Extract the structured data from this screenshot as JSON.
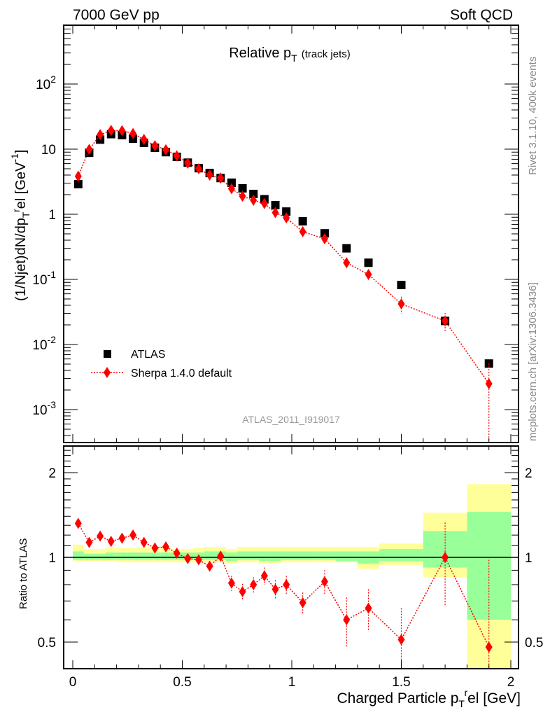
{
  "header": {
    "left": "7000 GeV pp",
    "right": "Soft QCD"
  },
  "side_labels": {
    "rivet": "Rivet 3.1.10,  400k events",
    "mcplots": "mcplots.cern.ch [arXiv:1306.3436]"
  },
  "watermark": "ATLAS_2011_I919017",
  "chart_data": [
    {
      "type": "scatter",
      "title": "Relative p",
      "title_sub": "T",
      "title_suffix": "(track jets)",
      "ylabel": "(1/Njet)dN/dp",
      "ylabel_sub": "T",
      "ylabel_sup": "r",
      "ylabel_tail": "el [GeV",
      "ylabel_tail_sup": "-1",
      "ylabel_close": "]",
      "yscale": "log",
      "xlim": [
        -0.045,
        2.035
      ],
      "ylim": [
        0.00032,
        820
      ],
      "ytick_labels": [
        {
          "v": 0.001,
          "base": "10",
          "exp": "-3"
        },
        {
          "v": 0.01,
          "base": "10",
          "exp": "-2"
        },
        {
          "v": 0.1,
          "base": "10",
          "exp": "-1"
        },
        {
          "v": 1,
          "base": "1",
          "exp": ""
        },
        {
          "v": 10,
          "base": "10",
          "exp": ""
        },
        {
          "v": 100,
          "base": "10",
          "exp": "2"
        }
      ],
      "legend_position": "lower-left",
      "x": [
        0.025,
        0.075,
        0.125,
        0.175,
        0.225,
        0.275,
        0.325,
        0.375,
        0.425,
        0.475,
        0.525,
        0.575,
        0.625,
        0.675,
        0.725,
        0.775,
        0.825,
        0.875,
        0.925,
        0.975,
        1.05,
        1.15,
        1.25,
        1.35,
        1.5,
        1.7,
        1.9
      ],
      "series": [
        {
          "name": "ATLAS",
          "color": "#000000",
          "marker": "square",
          "values": [
            2.9,
            8.8,
            14,
            17,
            16.4,
            14.5,
            12.5,
            10.5,
            9.0,
            7.6,
            6.2,
            5.1,
            4.3,
            3.6,
            3.05,
            2.5,
            2.05,
            1.7,
            1.38,
            1.1,
            0.78,
            0.51,
            0.3,
            0.18,
            0.082,
            0.023,
            0.0051
          ]
        },
        {
          "name": "Sherpa 1.4.0 default",
          "color": "#ff0000",
          "marker": "diamond",
          "line": "dotted",
          "values": [
            3.83,
            9.9,
            16.7,
            19.4,
            19.2,
            17.4,
            14.1,
            11.3,
            9.8,
            7.9,
            6.1,
            5.0,
            4.0,
            3.6,
            2.47,
            1.89,
            1.64,
            1.46,
            1.06,
            0.88,
            0.54,
            0.42,
            0.18,
            0.119,
            0.042,
            0.023,
            0.0025
          ]
        }
      ]
    },
    {
      "type": "scatter",
      "ylabel": "Ratio to ATLAS",
      "xlabel": "Charged Particle p",
      "xlabel_sub": "T",
      "xlabel_sup": "r",
      "xlabel_tail": "el [GeV]",
      "yscale": "log",
      "ylim": [
        0.4,
        2.5
      ],
      "xtick_labels": [
        "0",
        "0.5",
        "1",
        "1.5",
        "2"
      ],
      "ytick_labels": [
        "0.5",
        "1",
        "2"
      ],
      "bin_edges": [
        0,
        0.05,
        0.1,
        0.15,
        0.2,
        0.25,
        0.3,
        0.35,
        0.4,
        0.45,
        0.5,
        0.55,
        0.6,
        0.65,
        0.7,
        0.75,
        0.8,
        0.85,
        0.9,
        0.95,
        1.0,
        1.1,
        1.2,
        1.3,
        1.4,
        1.6,
        1.8,
        2.0
      ],
      "band_colors": {
        "total": "#ffff99",
        "stat": "#99ff99"
      },
      "band_total": [
        [
          0.97,
          1.11
        ],
        [
          0.97,
          1.07
        ],
        [
          0.97,
          1.07
        ],
        [
          0.97,
          1.08
        ],
        [
          0.96,
          1.08
        ],
        [
          0.96,
          1.08
        ],
        [
          0.96,
          1.08
        ],
        [
          0.96,
          1.08
        ],
        [
          0.96,
          1.08
        ],
        [
          0.96,
          1.07
        ],
        [
          0.96,
          1.07
        ],
        [
          0.96,
          1.08
        ],
        [
          0.96,
          1.09
        ],
        [
          0.96,
          1.09
        ],
        [
          0.95,
          1.07
        ],
        [
          0.96,
          1.09
        ],
        [
          0.96,
          1.09
        ],
        [
          0.95,
          1.09
        ],
        [
          0.95,
          1.09
        ],
        [
          0.96,
          1.09
        ],
        [
          0.96,
          1.09
        ],
        [
          0.96,
          1.09
        ],
        [
          0.96,
          1.09
        ],
        [
          0.91,
          1.09
        ],
        [
          0.94,
          1.12
        ],
        [
          0.85,
          1.44
        ],
        [
          0.3,
          1.82
        ]
      ],
      "band_stat": [
        [
          0.98,
          1.05
        ],
        [
          0.98,
          1.03
        ],
        [
          0.98,
          1.03
        ],
        [
          0.98,
          1.04
        ],
        [
          0.98,
          1.04
        ],
        [
          0.98,
          1.04
        ],
        [
          0.98,
          1.04
        ],
        [
          0.98,
          1.04
        ],
        [
          0.98,
          1.04
        ],
        [
          0.98,
          1.04
        ],
        [
          0.98,
          1.04
        ],
        [
          0.98,
          1.04
        ],
        [
          0.98,
          1.05
        ],
        [
          0.98,
          1.05
        ],
        [
          0.97,
          1.04
        ],
        [
          0.98,
          1.05
        ],
        [
          0.98,
          1.05
        ],
        [
          0.97,
          1.05
        ],
        [
          0.97,
          1.05
        ],
        [
          0.98,
          1.05
        ],
        [
          0.98,
          1.05
        ],
        [
          0.98,
          1.05
        ],
        [
          0.97,
          1.05
        ],
        [
          0.95,
          1.05
        ],
        [
          0.97,
          1.07
        ],
        [
          0.92,
          1.24
        ],
        [
          0.6,
          1.45
        ]
      ],
      "ratio_values": [
        1.32,
        1.13,
        1.19,
        1.14,
        1.17,
        1.2,
        1.13,
        1.08,
        1.09,
        1.035,
        0.99,
        0.98,
        0.93,
        1.01,
        0.81,
        0.755,
        0.8,
        0.86,
        0.77,
        0.8,
        0.69,
        0.82,
        0.6,
        0.66,
        0.51,
        1.0,
        0.48
      ],
      "ratio_errors": [
        0.05,
        0.03,
        0.03,
        0.03,
        0.03,
        0.03,
        0.03,
        0.03,
        0.03,
        0.03,
        0.03,
        0.03,
        0.04,
        0.04,
        0.05,
        0.05,
        0.05,
        0.06,
        0.06,
        0.06,
        0.06,
        0.08,
        0.12,
        0.11,
        0.15,
        0.33,
        0.5
      ]
    }
  ]
}
